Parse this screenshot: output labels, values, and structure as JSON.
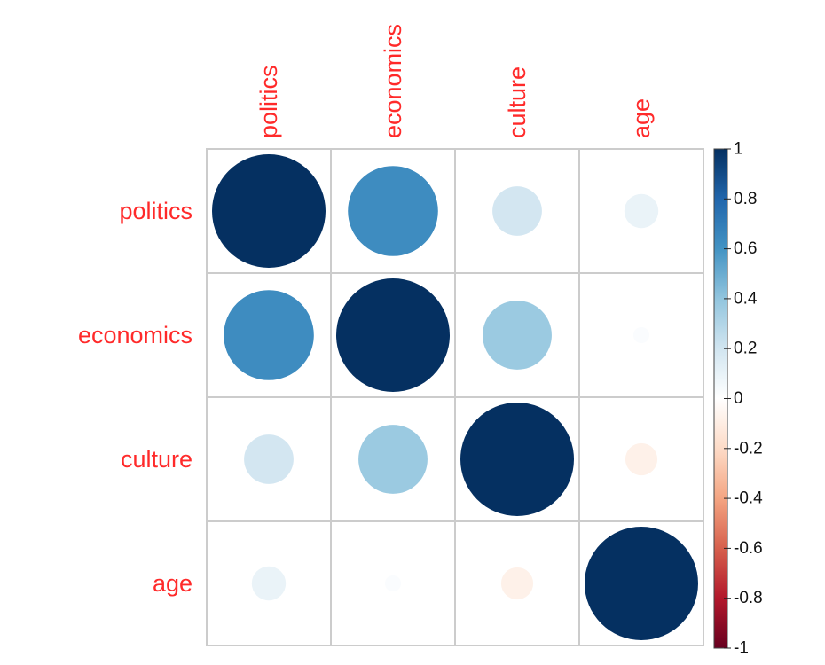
{
  "chart_data": {
    "type": "heatmap",
    "title": "",
    "variables": [
      "politics",
      "economics",
      "culture",
      "age"
    ],
    "matrix": [
      [
        1.0,
        0.63,
        0.19,
        0.09
      ],
      [
        0.63,
        1.0,
        0.37,
        0.02
      ],
      [
        0.19,
        0.37,
        1.0,
        -0.08
      ],
      [
        0.09,
        0.02,
        -0.08,
        1.0
      ]
    ],
    "cell_shape": "circle",
    "colorbar": {
      "range": [
        -1,
        1
      ],
      "ticks": [
        1,
        0.8,
        0.6,
        0.4,
        0.2,
        0,
        -0.2,
        -0.4,
        -0.6,
        -0.8,
        -1
      ],
      "tick_labels": [
        "1",
        "0.8",
        "0.6",
        "0.4",
        "0.2",
        "0",
        "-0.2",
        "-0.4",
        "-0.6",
        "-0.8",
        "-1"
      ],
      "placement": "right"
    },
    "colors": {
      "label": "#ff2a2a",
      "grid": "#cccccc",
      "palette": [
        "#67001f",
        "#b2182b",
        "#d6604d",
        "#f4a582",
        "#fddbc7",
        "#ffffff",
        "#d1e5f0",
        "#92c5de",
        "#4393c3",
        "#2166ac",
        "#053061"
      ]
    }
  }
}
